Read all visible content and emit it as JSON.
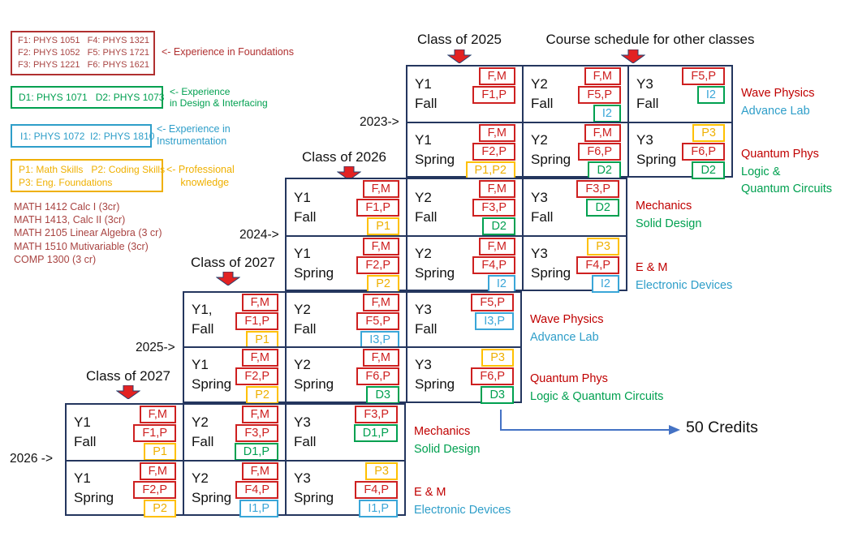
{
  "header": {
    "class_2025": "Class of 2025",
    "other_classes": "Course schedule for other classes",
    "class_2026": "Class of 2026",
    "class_2027_mid": "Class of 2027",
    "class_2027_bottom": "Class of 2027"
  },
  "year_markers": [
    "2023->",
    "2024->",
    "2025->",
    "2026 ->"
  ],
  "legend": {
    "foundations": {
      "lines": [
        "F1: PHYS 1051   F4: PHYS 1321",
        "F2: PHYS 1052   F5: PHYS 1721",
        "F3: PHYS 1221   F6: PHYS 1621"
      ],
      "note": [
        "<- Experience in Foundations"
      ],
      "color": "#B03030",
      "text_color": "#A94442"
    },
    "design": {
      "lines": [
        "D1: PHYS 1071   D2: PHYS 1073"
      ],
      "note": [
        "<- Experience",
        "in Design & Interfacing"
      ],
      "color": "#00A050",
      "text_color": "#00A050"
    },
    "instrumentation": {
      "lines": [
        "I1: PHYS 1072  I2: PHYS 1810"
      ],
      "note": [
        "<- Experience in",
        "Instrumentation"
      ],
      "color": "#2E9EC9",
      "text_color": "#2E9EC9"
    },
    "professional": {
      "lines": [
        "P1: Math Skills   P2: Coding Skills",
        "P3: Eng. Foundations"
      ],
      "note": [
        "<- Professional",
        "     knowledge"
      ],
      "color": "#EFB000",
      "text_color": "#EFB000"
    }
  },
  "math_courses": [
    "MATH 1412 Calc I (3cr)",
    "MATH 1413, Calc II (3cr)",
    "MATH 2105 Linear Algebra (3 cr)",
    "MATH 1510 Mutivariable (3cr)",
    "COMP 1300 (3 cr)"
  ],
  "credits_note": "50 Credits",
  "colors": {
    "table_border": "#24365E",
    "arrow_fill": "#E32222",
    "arrow_stroke": "#27406E",
    "connector_blue": "#4472C4",
    "math_text": "#A94442",
    "badge": {
      "red": {
        "border": "#CE2020",
        "text": "#CE2020"
      },
      "yellow": {
        "border": "#FFC000",
        "text": "#EFB000"
      },
      "green": {
        "border": "#00A050",
        "text": "#00A050"
      },
      "blue": {
        "border": "#3AA6D8",
        "text": "#3AA6D8"
      },
      "greenblue": {
        "border": "#00A050",
        "text": "#3AA6D8"
      }
    },
    "note": {
      "red": "#C00000",
      "green": "#00A050",
      "blue": "#2E9EC9"
    }
  },
  "tables": [
    {
      "class_year": "2025",
      "rows": [
        [
          {
            "year": "Y1",
            "term": "Fall",
            "badges": [
              {
                "t": "F,M",
                "c": "red"
              },
              {
                "t": "F1,P",
                "c": "red"
              }
            ]
          },
          {
            "year": "Y2",
            "term": "Fall",
            "badges": [
              {
                "t": "F,M",
                "c": "red"
              },
              {
                "t": "F5,P",
                "c": "red"
              },
              {
                "t": "I2",
                "c": "greenblue"
              }
            ]
          },
          {
            "year": "Y3",
            "term": "Fall",
            "badges": [
              {
                "t": "F5,P",
                "c": "red"
              },
              {
                "t": "I2",
                "c": "greenblue"
              }
            ]
          }
        ],
        [
          {
            "year": "Y1",
            "term": "Spring",
            "badges": [
              {
                "t": "F,M",
                "c": "red"
              },
              {
                "t": "F2,P",
                "c": "red"
              },
              {
                "t": "P1,P2",
                "c": "yellow"
              }
            ]
          },
          {
            "year": "Y2",
            "term": "Spring",
            "badges": [
              {
                "t": "F,M",
                "c": "red"
              },
              {
                "t": "F6,P",
                "c": "red"
              },
              {
                "t": "D2",
                "c": "green"
              }
            ]
          },
          {
            "year": "Y3",
            "term": "Spring",
            "badges": [
              {
                "t": "P3",
                "c": "yellow"
              },
              {
                "t": "F6,P",
                "c": "red"
              },
              {
                "t": "D2",
                "c": "green"
              }
            ]
          }
        ]
      ],
      "fall_note": [
        {
          "text": "Wave Physics",
          "color": "red"
        },
        {
          "text": "Advance Lab",
          "color": "blue"
        }
      ],
      "spring_note": [
        {
          "text": "Quantum Phys",
          "color": "red"
        },
        {
          "text": "Logic &",
          "color": "green"
        },
        {
          "text": "Quantum Circuits",
          "color": "green"
        }
      ]
    },
    {
      "class_year": "2026",
      "rows": [
        [
          {
            "year": "Y1",
            "term": "Fall",
            "badges": [
              {
                "t": "F,M",
                "c": "red"
              },
              {
                "t": "F1,P",
                "c": "red"
              },
              {
                "t": "P1",
                "c": "yellow"
              }
            ]
          },
          {
            "year": "Y2",
            "term": "Fall",
            "badges": [
              {
                "t": "F,M",
                "c": "red"
              },
              {
                "t": "F3,P",
                "c": "red"
              },
              {
                "t": "D2",
                "c": "green"
              }
            ]
          },
          {
            "year": "Y3",
            "term": "Fall",
            "badges": [
              {
                "t": "F3,P",
                "c": "red"
              },
              {
                "t": "D2",
                "c": "green"
              }
            ]
          }
        ],
        [
          {
            "year": "Y1",
            "term": "Spring",
            "badges": [
              {
                "t": "F,M",
                "c": "red"
              },
              {
                "t": "F2,P",
                "c": "red"
              },
              {
                "t": "P2",
                "c": "yellow"
              }
            ]
          },
          {
            "year": "Y2",
            "term": "Spring",
            "badges": [
              {
                "t": "F,M",
                "c": "red"
              },
              {
                "t": "F4,P",
                "c": "red"
              },
              {
                "t": "I2",
                "c": "blue"
              }
            ]
          },
          {
            "year": "Y3",
            "term": "Spring",
            "badges": [
              {
                "t": "P3",
                "c": "yellow"
              },
              {
                "t": "F4,P",
                "c": "red"
              },
              {
                "t": "I2",
                "c": "blue"
              }
            ]
          }
        ]
      ],
      "fall_note": [
        {
          "text": "Mechanics",
          "color": "red"
        },
        {
          "text": "Solid Design",
          "color": "green"
        }
      ],
      "spring_note": [
        {
          "text": "E & M",
          "color": "red"
        },
        {
          "text": "Electronic Devices",
          "color": "blue"
        }
      ]
    },
    {
      "class_year": "2027",
      "rows": [
        [
          {
            "year": "Y1,",
            "term": "Fall",
            "badges": [
              {
                "t": "F,M",
                "c": "red"
              },
              {
                "t": "F1,P",
                "c": "red"
              },
              {
                "t": "P1",
                "c": "yellow"
              }
            ]
          },
          {
            "year": "Y2",
            "term": "Fall",
            "badges": [
              {
                "t": "F,M",
                "c": "red"
              },
              {
                "t": "F5,P",
                "c": "red"
              },
              {
                "t": "I3,P",
                "c": "blue"
              }
            ]
          },
          {
            "year": "Y3",
            "term": "Fall",
            "badges": [
              {
                "t": "F5,P",
                "c": "red"
              },
              {
                "t": "I3,P",
                "c": "blue"
              }
            ]
          }
        ],
        [
          {
            "year": "Y1",
            "term": "Spring",
            "badges": [
              {
                "t": "F,M",
                "c": "red"
              },
              {
                "t": "F2,P",
                "c": "red"
              },
              {
                "t": "P2",
                "c": "yellow"
              }
            ]
          },
          {
            "year": "Y2",
            "term": "Spring",
            "badges": [
              {
                "t": "F,M",
                "c": "red"
              },
              {
                "t": "F6,P",
                "c": "red"
              },
              {
                "t": "D3",
                "c": "green"
              }
            ]
          },
          {
            "year": "Y3",
            "term": "Spring",
            "badges": [
              {
                "t": "P3",
                "c": "yellow"
              },
              {
                "t": "F6,P",
                "c": "red"
              },
              {
                "t": "D3",
                "c": "green"
              }
            ]
          }
        ]
      ],
      "fall_note": [
        {
          "text": "Wave Physics",
          "color": "red"
        },
        {
          "text": "Advance Lab",
          "color": "blue"
        }
      ],
      "spring_note": [
        {
          "text": "Quantum Phys",
          "color": "red"
        },
        {
          "text": "Logic & Quantum Circuits",
          "color": "green"
        }
      ]
    },
    {
      "class_year": "2027-bottom",
      "rows": [
        [
          {
            "year": "Y1",
            "term": "Fall",
            "badges": [
              {
                "t": "F,M",
                "c": "red"
              },
              {
                "t": "F1,P",
                "c": "red"
              },
              {
                "t": "P1",
                "c": "yellow"
              }
            ]
          },
          {
            "year": "Y2",
            "term": "Fall",
            "badges": [
              {
                "t": "F,M",
                "c": "red"
              },
              {
                "t": "F3,P",
                "c": "red"
              },
              {
                "t": "D1,P",
                "c": "green"
              }
            ]
          },
          {
            "year": "Y3",
            "term": "Fall",
            "badges": [
              {
                "t": "F3,P",
                "c": "red"
              },
              {
                "t": "D1,P",
                "c": "green"
              }
            ]
          }
        ],
        [
          {
            "year": "Y1",
            "term": "Spring",
            "badges": [
              {
                "t": "F,M",
                "c": "red"
              },
              {
                "t": "F2,P",
                "c": "red"
              },
              {
                "t": "P2",
                "c": "yellow"
              }
            ]
          },
          {
            "year": "Y2",
            "term": "Spring",
            "badges": [
              {
                "t": "F,M",
                "c": "red"
              },
              {
                "t": "F4,P",
                "c": "red"
              },
              {
                "t": "I1,P",
                "c": "blue"
              }
            ]
          },
          {
            "year": "Y3",
            "term": "Spring",
            "badges": [
              {
                "t": "P3",
                "c": "yellow"
              },
              {
                "t": "F4,P",
                "c": "red"
              },
              {
                "t": "I1,P",
                "c": "blue"
              }
            ]
          }
        ]
      ],
      "fall_note": [
        {
          "text": "Mechanics",
          "color": "red"
        },
        {
          "text": "Solid Design",
          "color": "green"
        }
      ],
      "spring_note": [
        {
          "text": "E & M",
          "color": "red"
        },
        {
          "text": "Electronic Devices",
          "color": "blue"
        }
      ]
    }
  ]
}
